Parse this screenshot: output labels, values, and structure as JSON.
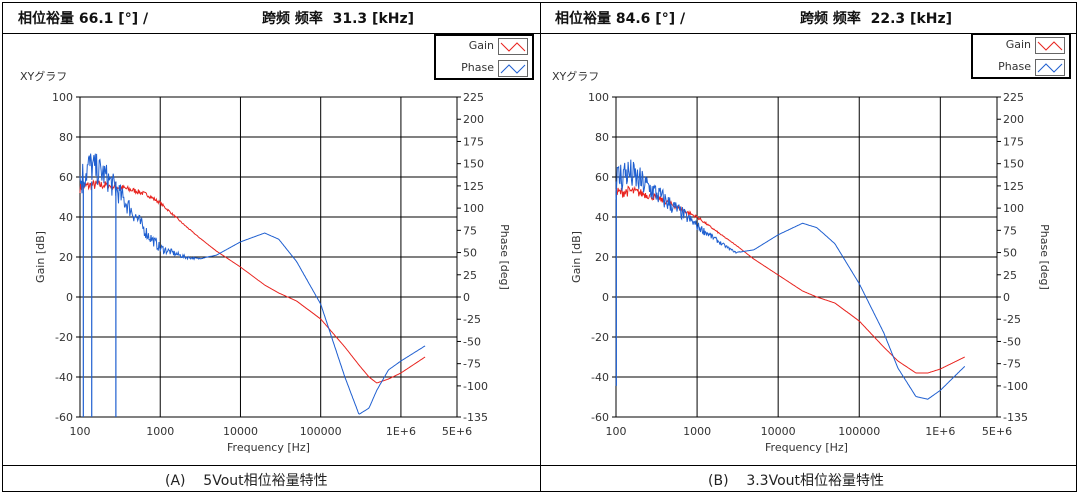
{
  "panels": [
    {
      "header": {
        "phase_label": "相位裕量",
        "phase_value": "66.1",
        "phase_unit": "[°] /",
        "cross_label": "跨频 频率",
        "cross_value": "31.3",
        "cross_unit": "[kHz]"
      },
      "caption": "(A)    5Vout相位裕量特性"
    },
    {
      "header": {
        "phase_label": "相位裕量",
        "phase_value": "84.6",
        "phase_unit": "[°] /",
        "cross_label": "跨频 频率",
        "cross_value": "22.3",
        "cross_unit": "[kHz]"
      },
      "caption": "(B)    3.3Vout相位裕量特性"
    }
  ],
  "colors": {
    "gain": "#e8231e",
    "phase": "#1f5fd0",
    "grid": "#000000"
  },
  "chart_data": [
    {
      "type": "line",
      "title": "XYグラフ",
      "xlabel": "Frequency [Hz]",
      "ylabel": "Gain [dB]",
      "y2label": "Phase [deg]",
      "xscale": "log",
      "xlim": [
        100,
        5000000
      ],
      "ylim": [
        -60,
        100
      ],
      "y2lim": [
        -135,
        225
      ],
      "x_ticks": [
        "100",
        "1000",
        "10000",
        "100000",
        "1E+6",
        "5E+6"
      ],
      "y_ticks": [
        "100",
        "80",
        "60",
        "40",
        "20",
        "0",
        "-20",
        "-40",
        "-60"
      ],
      "y2_ticks": [
        "225",
        "200",
        "175",
        "150",
        "125",
        "100",
        "75",
        "50",
        "25",
        "0",
        "-25",
        "-50",
        "-75",
        "-100",
        "-135"
      ],
      "legend": {
        "position": "top-right",
        "entries": [
          "Gain",
          "Phase"
        ]
      },
      "series": [
        {
          "name": "Gain",
          "axis": "left",
          "x": [
            100,
            150,
            200,
            300,
            500,
            700,
            1000,
            2000,
            3000,
            5000,
            10000,
            20000,
            30000,
            50000,
            100000,
            200000,
            300000,
            400000,
            500000,
            700000,
            1000000,
            2000000
          ],
          "y": [
            55,
            56,
            56,
            55,
            53,
            51,
            47,
            36,
            30,
            23,
            15,
            6,
            2,
            -2,
            -11,
            -25,
            -34,
            -40,
            -43,
            -41,
            -38,
            -30
          ]
        },
        {
          "name": "Phase",
          "axis": "right",
          "x": [
            100,
            130,
            150,
            200,
            300,
            500,
            700,
            1000,
            2000,
            3000,
            5000,
            10000,
            20000,
            30000,
            50000,
            100000,
            200000,
            300000,
            400000,
            500000,
            700000,
            1000000,
            2000000
          ],
          "y": [
            130,
            148,
            145,
            138,
            118,
            90,
            70,
            55,
            45,
            43,
            47,
            62,
            72,
            65,
            40,
            -8,
            -90,
            -132,
            -125,
            -105,
            -82,
            -72,
            -55
          ],
          "dips": [
            {
              "x": 110,
              "y": -135
            },
            {
              "x": 140,
              "y": -135
            },
            {
              "x": 280,
              "y": -135
            }
          ]
        }
      ]
    },
    {
      "type": "line",
      "title": "XYグラフ",
      "xlabel": "Frequency [Hz]",
      "ylabel": "Gain [dB]",
      "y2label": "Phase [deg]",
      "xscale": "log",
      "xlim": [
        100,
        5000000
      ],
      "ylim": [
        -60,
        100
      ],
      "y2lim": [
        -135,
        225
      ],
      "x_ticks": [
        "100",
        "1000",
        "10000",
        "100000",
        "1E+6",
        "5E+6"
      ],
      "y_ticks": [
        "100",
        "80",
        "60",
        "40",
        "20",
        "0",
        "-20",
        "-40",
        "-60"
      ],
      "y2_ticks": [
        "225",
        "200",
        "175",
        "150",
        "125",
        "100",
        "75",
        "50",
        "25",
        "0",
        "-25",
        "-50",
        "-75",
        "-100",
        "-135"
      ],
      "legend": {
        "position": "top-right",
        "entries": [
          "Gain",
          "Phase"
        ]
      },
      "series": [
        {
          "name": "Gain",
          "axis": "left",
          "x": [
            100,
            150,
            200,
            300,
            500,
            700,
            1000,
            2000,
            3000,
            5000,
            10000,
            20000,
            30000,
            50000,
            100000,
            200000,
            300000,
            500000,
            700000,
            1000000,
            2000000
          ],
          "y": [
            52,
            53,
            52,
            50,
            46,
            43,
            40,
            31,
            26,
            19,
            11,
            3,
            0,
            -3,
            -12,
            -25,
            -32,
            -38,
            -38,
            -36,
            -30
          ],
          "note": ""
        },
        {
          "name": "Phase",
          "axis": "right",
          "x": [
            100,
            130,
            150,
            200,
            300,
            500,
            700,
            1000,
            2000,
            3000,
            5000,
            10000,
            20000,
            30000,
            50000,
            100000,
            200000,
            300000,
            500000,
            700000,
            1000000,
            2000000
          ],
          "y": [
            130,
            140,
            138,
            130,
            118,
            102,
            92,
            80,
            60,
            50,
            53,
            70,
            83,
            78,
            60,
            15,
            -40,
            -80,
            -112,
            -115,
            -105,
            -78
          ],
          "dips": [
            {
              "x": 101,
              "y": -100
            }
          ]
        }
      ]
    }
  ]
}
